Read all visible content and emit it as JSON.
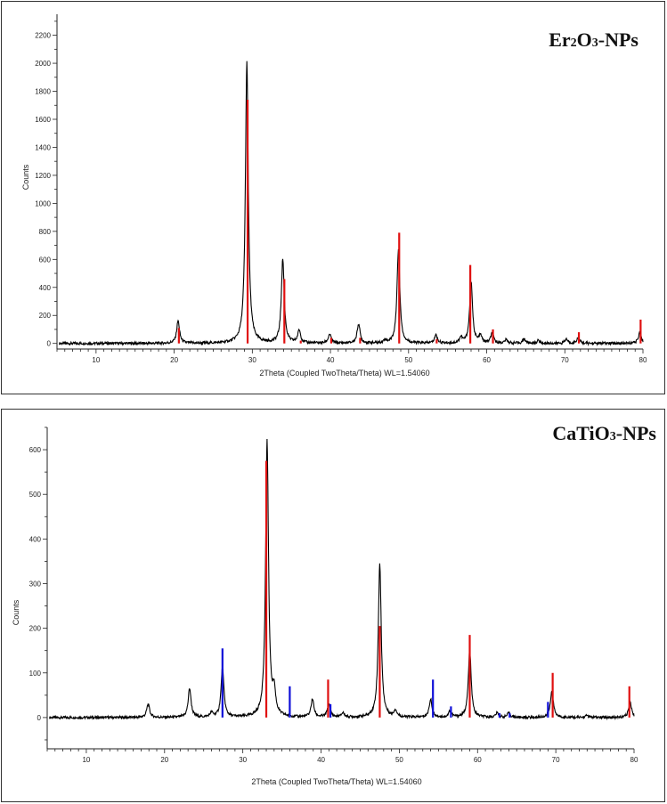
{
  "chart_data": [
    {
      "type": "line",
      "title_main": "Er",
      "title_sub1": "2",
      "title_mid": "O",
      "title_sub2": "3",
      "title_end": "-NPs",
      "xlabel": "2Theta (Coupled TwoTheta/Theta) WL=1.54060",
      "ylabel": "Counts",
      "xlim": [
        5,
        80
      ],
      "ylim": [
        -40,
        2350
      ],
      "xticks": [
        10,
        20,
        30,
        40,
        50,
        60,
        70,
        80
      ],
      "yticks": [
        0,
        200,
        400,
        600,
        800,
        1000,
        1200,
        1400,
        1600,
        1800,
        2000,
        2200
      ],
      "grid": false,
      "series": [
        {
          "style": "pattern",
          "color": "#000000",
          "baseline": 0,
          "peaks": [
            [
              20.5,
              160
            ],
            [
              29.3,
              2010
            ],
            [
              33.9,
              600
            ],
            [
              36.0,
              90
            ],
            [
              39.9,
              65
            ],
            [
              43.6,
              140
            ],
            [
              47.0,
              20
            ],
            [
              48.7,
              670
            ],
            [
              53.5,
              60
            ],
            [
              56.7,
              40
            ],
            [
              58.0,
              440
            ],
            [
              59.2,
              50
            ],
            [
              60.7,
              70
            ],
            [
              62.5,
              25
            ],
            [
              64.8,
              30
            ],
            [
              66.6,
              20
            ],
            [
              70.2,
              30
            ],
            [
              71.7,
              40
            ],
            [
              79.6,
              80
            ]
          ]
        },
        {
          "style": "sticks",
          "color": "#e01010",
          "sticks": [
            [
              20.6,
              110
            ],
            [
              29.4,
              1740
            ],
            [
              34.1,
              460
            ],
            [
              36.2,
              20
            ],
            [
              40.1,
              40
            ],
            [
              43.8,
              40
            ],
            [
              48.8,
              790
            ],
            [
              53.6,
              30
            ],
            [
              57.9,
              560
            ],
            [
              60.8,
              100
            ],
            [
              71.8,
              80
            ],
            [
              79.7,
              170
            ]
          ]
        }
      ]
    },
    {
      "type": "line",
      "title_main": "CaTiO",
      "title_sub1": "3",
      "title_mid": "",
      "title_sub2": "",
      "title_end": "-NPs",
      "xlabel": "2Theta (Coupled TwoTheta/Theta) WL=1.54060",
      "ylabel": "Counts",
      "xlim": [
        5,
        80
      ],
      "ylim": [
        -70,
        650
      ],
      "xticks": [
        10,
        20,
        30,
        40,
        50,
        60,
        70,
        80
      ],
      "yticks": [
        0,
        100,
        200,
        300,
        400,
        500,
        600
      ],
      "grid": false,
      "series": [
        {
          "style": "pattern",
          "color": "#000000",
          "baseline": 0,
          "peaks": [
            [
              17.9,
              30
            ],
            [
              23.2,
              65
            ],
            [
              26.0,
              10
            ],
            [
              27.4,
              110
            ],
            [
              33.1,
              620
            ],
            [
              34.0,
              50
            ],
            [
              38.9,
              40
            ],
            [
              41.0,
              30
            ],
            [
              42.8,
              10
            ],
            [
              47.5,
              345
            ],
            [
              49.5,
              15
            ],
            [
              54.0,
              40
            ],
            [
              56.5,
              15
            ],
            [
              59.0,
              150
            ],
            [
              62.5,
              10
            ],
            [
              64.0,
              10
            ],
            [
              69.5,
              60
            ],
            [
              74.0,
              5
            ],
            [
              79.5,
              35
            ]
          ]
        },
        {
          "style": "sticks",
          "color": "#e01010",
          "sticks": [
            [
              33.0,
              575
            ],
            [
              40.9,
              85
            ],
            [
              47.5,
              205
            ],
            [
              59.0,
              185
            ],
            [
              69.6,
              100
            ],
            [
              79.4,
              70
            ]
          ]
        },
        {
          "style": "sticks",
          "color": "#1010d8",
          "sticks": [
            [
              27.4,
              155
            ],
            [
              36.0,
              70
            ],
            [
              41.2,
              30
            ],
            [
              54.3,
              85
            ],
            [
              56.6,
              25
            ],
            [
              62.8,
              10
            ],
            [
              64.1,
              10
            ],
            [
              69.0,
              35
            ]
          ]
        }
      ]
    }
  ]
}
